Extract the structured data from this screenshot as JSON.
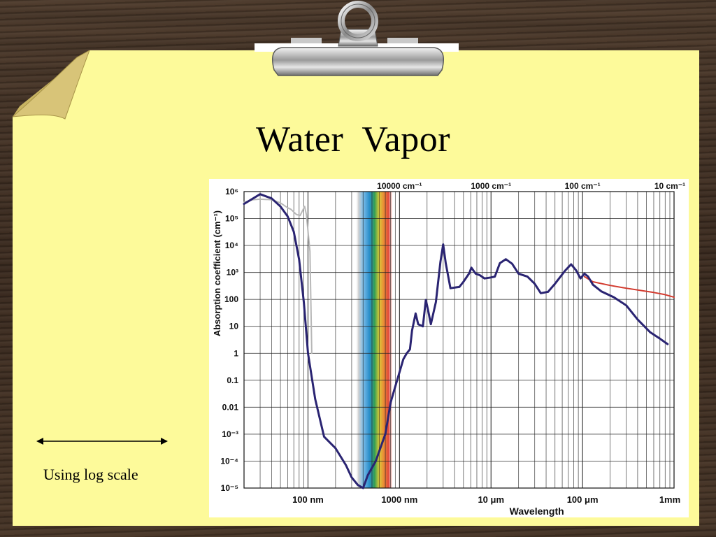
{
  "slide": {
    "title": "Water  Vapor",
    "caption": "Using log scale"
  },
  "colors": {
    "paper": "#fdfa9a",
    "water_curve": "#2a2472",
    "liquid_extension": "#d23a2e",
    "ice_curve": "#b8b8b8",
    "grid": "#222222"
  },
  "chart_data": {
    "type": "line",
    "title": "",
    "xlabel": "Wavelength",
    "ylabel": "Absorption coefficient (cm⁻¹)",
    "x_scale": "log",
    "y_scale": "log",
    "xlim_m": [
      2e-08,
      0.001
    ],
    "ylim": [
      1e-05,
      1000000.0
    ],
    "x_ticks_bottom": [
      {
        "value_m": 1e-07,
        "label": "100 nm"
      },
      {
        "value_m": 1e-06,
        "label": "1000 nm"
      },
      {
        "value_m": 1e-05,
        "label": "10 μm"
      },
      {
        "value_m": 0.0001,
        "label": "100 μm"
      },
      {
        "value_m": 0.001,
        "label": "1mm"
      }
    ],
    "x_ticks_top": [
      {
        "value_m": 1e-06,
        "label": "10000 cm⁻¹"
      },
      {
        "value_m": 1e-05,
        "label": "1000 cm⁻¹"
      },
      {
        "value_m": 0.0001,
        "label": "100 cm⁻¹"
      },
      {
        "value_m": 0.001,
        "label": "10 cm⁻¹"
      }
    ],
    "y_ticks": [
      {
        "value": 1000000.0,
        "label": "10⁶"
      },
      {
        "value": 100000.0,
        "label": "10⁵"
      },
      {
        "value": 10000.0,
        "label": "10⁴"
      },
      {
        "value": 1000.0,
        "label": "10³"
      },
      {
        "value": 100,
        "label": "100"
      },
      {
        "value": 10,
        "label": "10"
      },
      {
        "value": 1,
        "label": "1"
      },
      {
        "value": 0.1,
        "label": "0.1"
      },
      {
        "value": 0.01,
        "label": "0.01"
      },
      {
        "value": 0.001,
        "label": "10⁻³"
      },
      {
        "value": 0.0001,
        "label": "10⁻⁴"
      },
      {
        "value": 1e-05,
        "label": "10⁻⁵"
      }
    ],
    "grid": true,
    "visible_band_m": [
      3.8e-07,
      7.5e-07
    ],
    "series": [
      {
        "points": [
          [
            2e-08,
            350000
          ],
          [
            3e-08,
            800000
          ],
          [
            4e-08,
            560000
          ],
          [
            5e-08,
            280000
          ],
          [
            6e-08,
            120000
          ],
          [
            7e-08,
            32000
          ],
          [
            8e-08,
            3000
          ],
          [
            9e-08,
            80
          ],
          [
            1e-07,
            1.0
          ],
          [
            1.2e-07,
            0.02
          ],
          [
            1.5e-07,
            0.0008
          ],
          [
            2e-07,
            0.0003
          ],
          [
            2.6e-07,
            7e-05
          ],
          [
            3e-07,
            2.5e-05
          ],
          [
            3.5e-07,
            1.3e-05
          ],
          [
            4e-07,
            1e-05
          ],
          [
            4.5e-07,
            3e-05
          ],
          [
            5.5e-07,
            0.0001
          ],
          [
            6.5e-07,
            0.0005
          ],
          [
            7e-07,
            0.001
          ],
          [
            8e-07,
            0.015
          ],
          [
            9e-07,
            0.06
          ],
          [
            1e-06,
            0.2
          ],
          [
            1.1e-06,
            0.6
          ],
          [
            1.2e-06,
            1.0
          ],
          [
            1.3e-06,
            1.4
          ],
          [
            1.37e-06,
            7
          ],
          [
            1.5e-06,
            30
          ],
          [
            1.6e-06,
            12
          ],
          [
            1.8e-06,
            10
          ],
          [
            1.94e-06,
            95
          ],
          [
            2.05e-06,
            40
          ],
          [
            2.2e-06,
            12
          ],
          [
            2.5e-06,
            80
          ],
          [
            2.8e-06,
            2500
          ],
          [
            3e-06,
            11000
          ],
          [
            3.2e-06,
            2200
          ],
          [
            3.6e-06,
            260
          ],
          [
            4.2e-06,
            280
          ],
          [
            4.5e-06,
            290
          ],
          [
            5e-06,
            450
          ],
          [
            5.8e-06,
            950
          ],
          [
            6.1e-06,
            1500
          ],
          [
            6.8e-06,
            900
          ],
          [
            7.5e-06,
            800
          ],
          [
            8.5e-06,
            600
          ],
          [
            1e-05,
            650
          ],
          [
            1.1e-05,
            700
          ],
          [
            1.25e-05,
            2200
          ],
          [
            1.45e-05,
            3100
          ],
          [
            1.7e-05,
            2100
          ],
          [
            2e-05,
            900
          ],
          [
            2.5e-05,
            700
          ],
          [
            3e-05,
            380
          ],
          [
            3.5e-05,
            170
          ],
          [
            4.2e-05,
            190
          ],
          [
            5e-05,
            380
          ],
          [
            6.5e-05,
            1200
          ],
          [
            7.5e-05,
            2000
          ],
          [
            8.5e-05,
            1200
          ],
          [
            9.5e-05,
            600
          ],
          [
            0.000105,
            900
          ],
          [
            0.000115,
            700
          ],
          [
            0.00013,
            350
          ],
          [
            0.00016,
            200
          ],
          [
            0.00022,
            120
          ],
          [
            0.0003,
            60
          ],
          [
            0.0004,
            18
          ],
          [
            0.00055,
            6
          ],
          [
            0.0007,
            3.5
          ],
          [
            0.00085,
            2.2
          ]
        ]
      },
      {
        "points": [
          [
            0.000105,
            700
          ],
          [
            0.00013,
            450
          ],
          [
            0.0002,
            330
          ],
          [
            0.0003,
            260
          ],
          [
            0.00045,
            210
          ],
          [
            0.0006,
            180
          ],
          [
            0.0008,
            150
          ],
          [
            0.001,
            120
          ]
        ]
      },
      {
        "points": [
          [
            2e-08,
            400000
          ],
          [
            2.5e-08,
            500000
          ],
          [
            3e-08,
            520000
          ],
          [
            4e-08,
            500000
          ],
          [
            5e-08,
            380000
          ],
          [
            6e-08,
            250000
          ],
          [
            6.5e-08,
            220000
          ],
          [
            7.5e-08,
            140000
          ],
          [
            8.2e-08,
            130000
          ],
          [
            9.2e-08,
            280000
          ],
          [
            9.6e-08,
            140000
          ],
          [
            1.05e-07,
            6000
          ],
          [
            1.1e-07,
            1.0
          ]
        ]
      }
    ]
  }
}
